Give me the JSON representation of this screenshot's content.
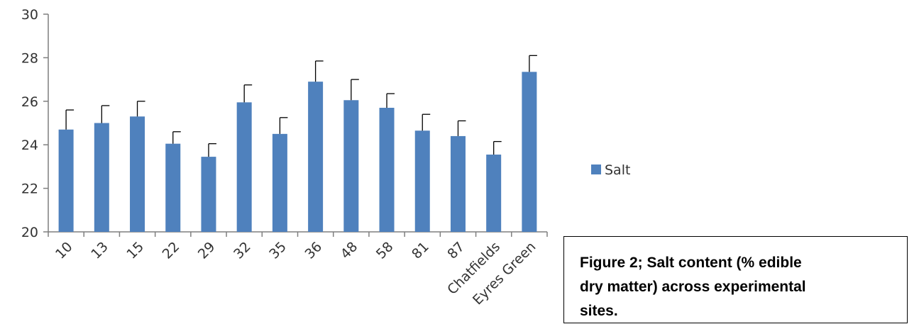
{
  "chart_data": {
    "type": "bar",
    "categories": [
      "10",
      "13",
      "15",
      "22",
      "29",
      "32",
      "35",
      "36",
      "48",
      "58",
      "81",
      "87",
      "Chatfields",
      "Eyres Green"
    ],
    "series": [
      {
        "name": "Salt",
        "values": [
          24.7,
          25.0,
          25.3,
          24.05,
          23.45,
          25.95,
          24.5,
          26.9,
          26.05,
          25.7,
          24.65,
          24.4,
          23.55,
          27.35
        ],
        "error": [
          0.9,
          0.8,
          0.7,
          0.55,
          0.6,
          0.8,
          0.75,
          0.95,
          0.95,
          0.65,
          0.75,
          0.7,
          0.6,
          0.75
        ]
      }
    ],
    "ylim": [
      20,
      30
    ],
    "yticks": [
      "20",
      "22",
      "24",
      "26",
      "28",
      "30"
    ],
    "grid": false,
    "legend_position": "right",
    "colors": {
      "bar": "#4F81BD",
      "error_bar": "#000000",
      "axis": "#7f7f7f"
    }
  },
  "caption": {
    "text": "Figure 2; Salt content (% edible dry matter) across experimental sites."
  }
}
